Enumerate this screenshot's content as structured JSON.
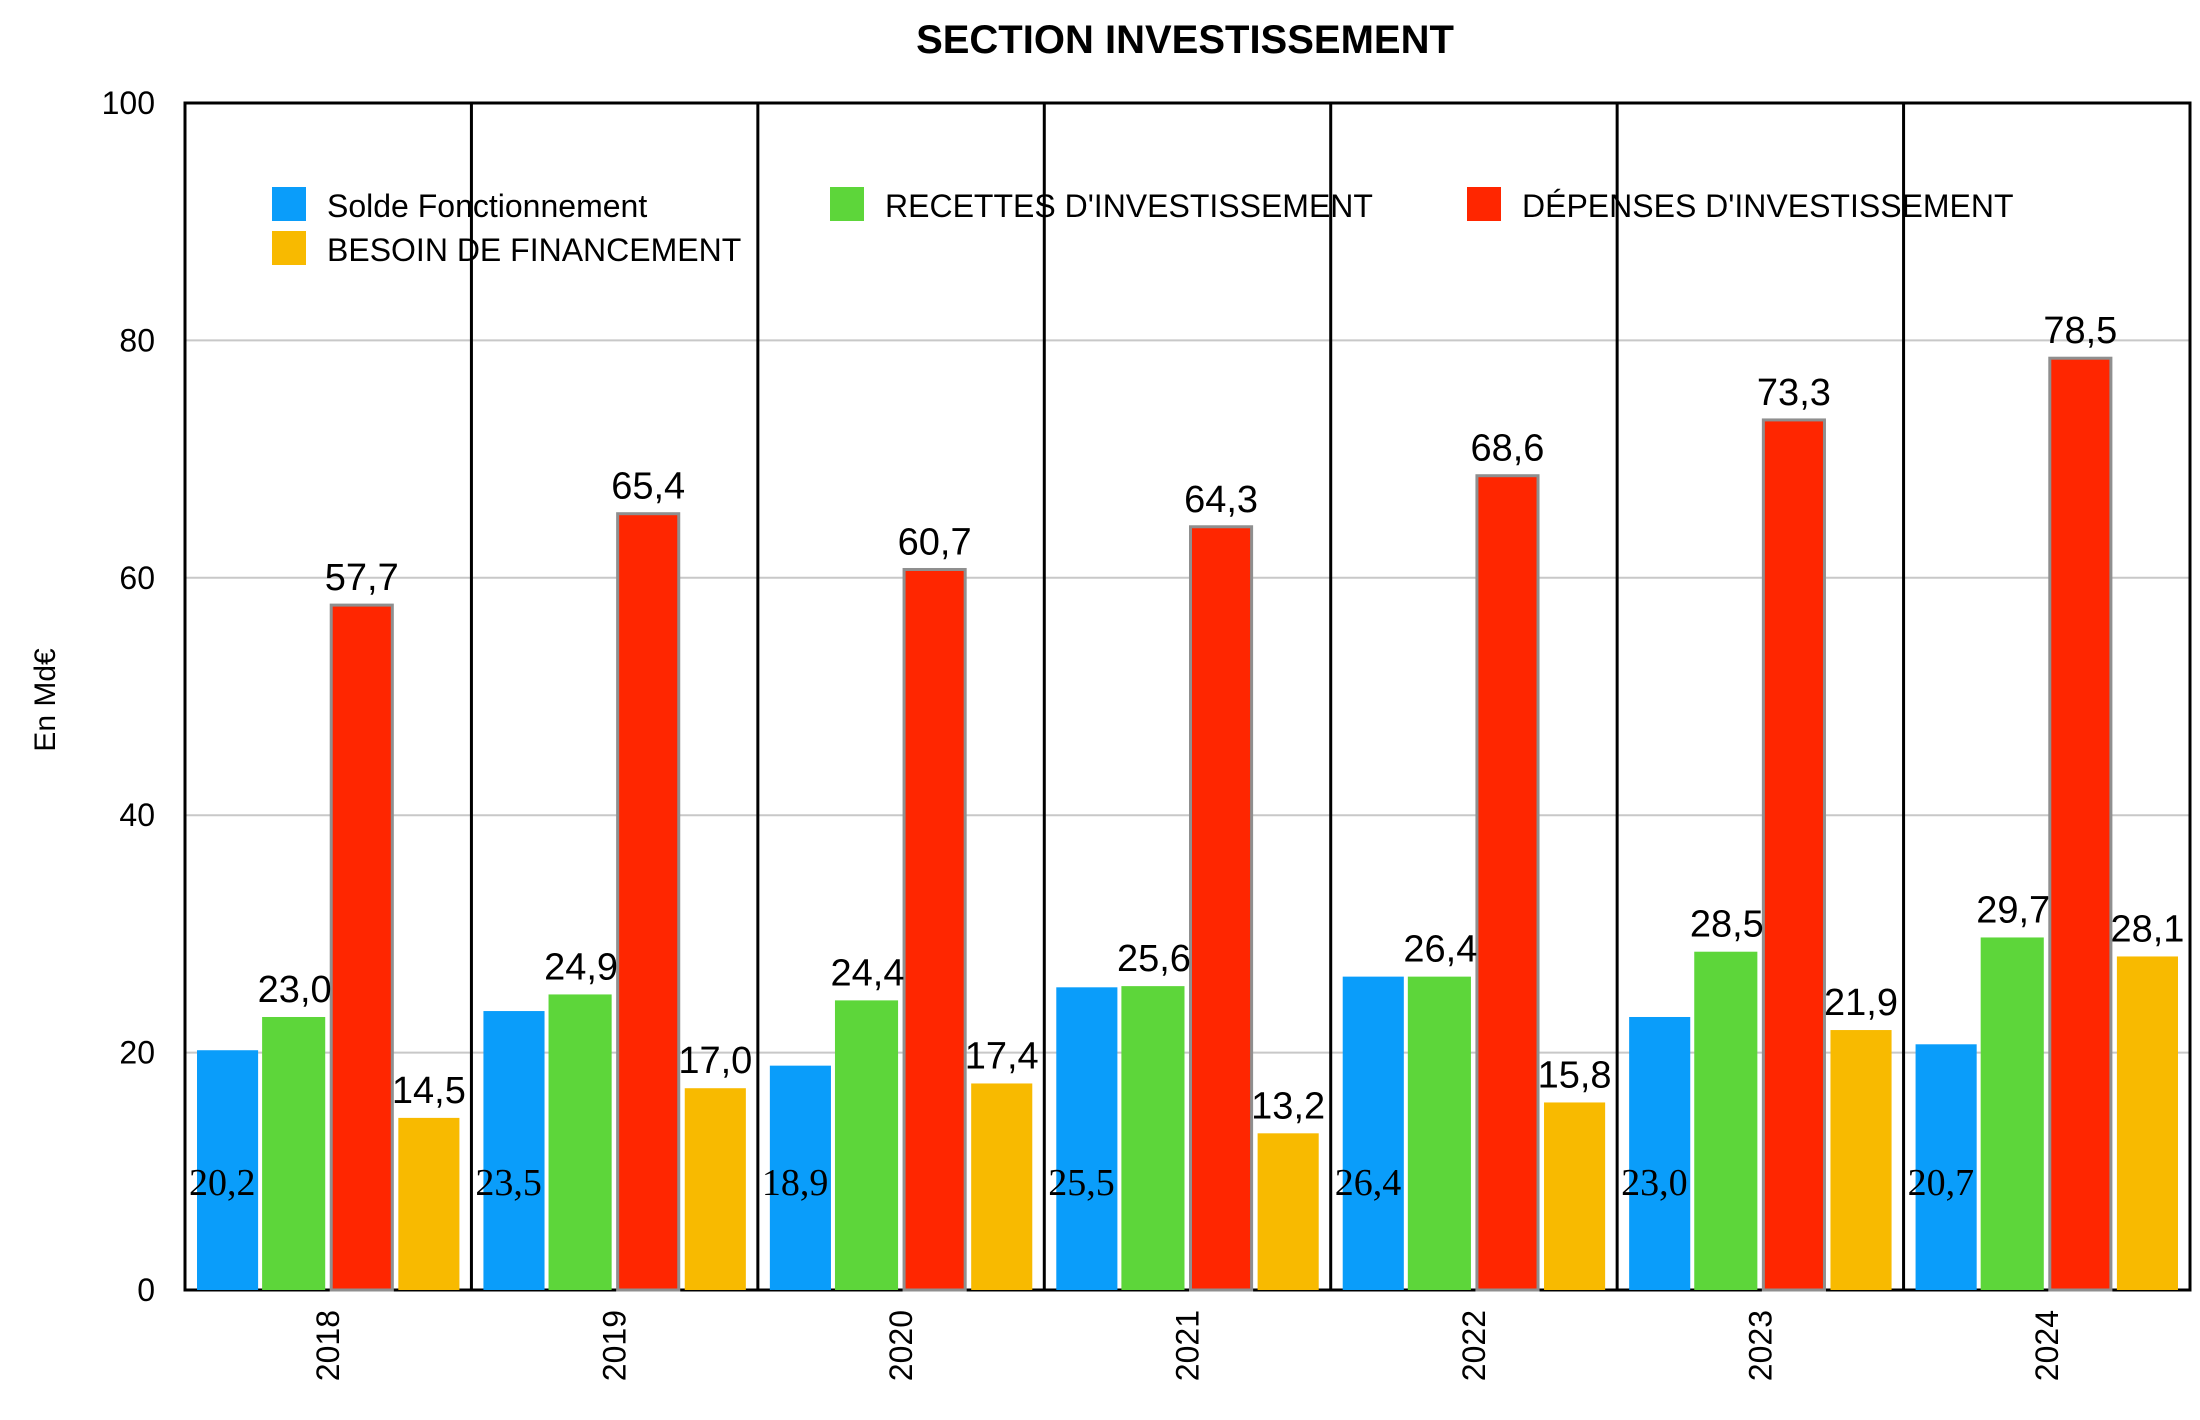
{
  "chart_data": {
    "type": "bar",
    "title": "SECTION INVESTISSEMENT",
    "ylabel": "En Md€",
    "xlabel": "",
    "ylim": [
      0,
      100
    ],
    "yticks": [
      0,
      20,
      40,
      60,
      80,
      100
    ],
    "categories": [
      "2018",
      "2019",
      "2020",
      "2021",
      "2022",
      "2023",
      "2024"
    ],
    "series": [
      {
        "name": "Solde Fonctionnement",
        "color": "#0A9DFA",
        "values": [
          20.2,
          23.5,
          18.9,
          25.5,
          26.4,
          23.0,
          20.7
        ],
        "labels": [
          "20,2",
          "23,5",
          "18,9",
          "25,5",
          "26,4",
          "23,0",
          "20,7"
        ]
      },
      {
        "name": "RECETTES D'INVESTISSEMENT",
        "color": "#5DD63A",
        "values": [
          23.0,
          24.9,
          24.4,
          25.6,
          26.4,
          28.5,
          29.7
        ],
        "labels": [
          "23,0",
          "24,9",
          "24,4",
          "25,6",
          "26,4",
          "28,5",
          "29,7"
        ]
      },
      {
        "name": "DÉPENSES D'INVESTISSEMENT",
        "color": "#FF2600",
        "values": [
          57.7,
          65.4,
          60.7,
          64.3,
          68.6,
          73.3,
          78.5
        ],
        "labels": [
          "57,7",
          "65,4",
          "60,7",
          "64,3",
          "68,6",
          "73,3",
          "78,5"
        ]
      },
      {
        "name": "BESOIN DE FINANCEMENT",
        "color": "#F8BA00",
        "values": [
          14.5,
          17.0,
          17.4,
          13.2,
          15.8,
          21.9,
          28.1
        ],
        "labels": [
          "14,5",
          "17,0",
          "17,4",
          "13,2",
          "15,8",
          "21,9",
          "28,1"
        ]
      }
    ],
    "grid": true,
    "legend_position": "top"
  }
}
